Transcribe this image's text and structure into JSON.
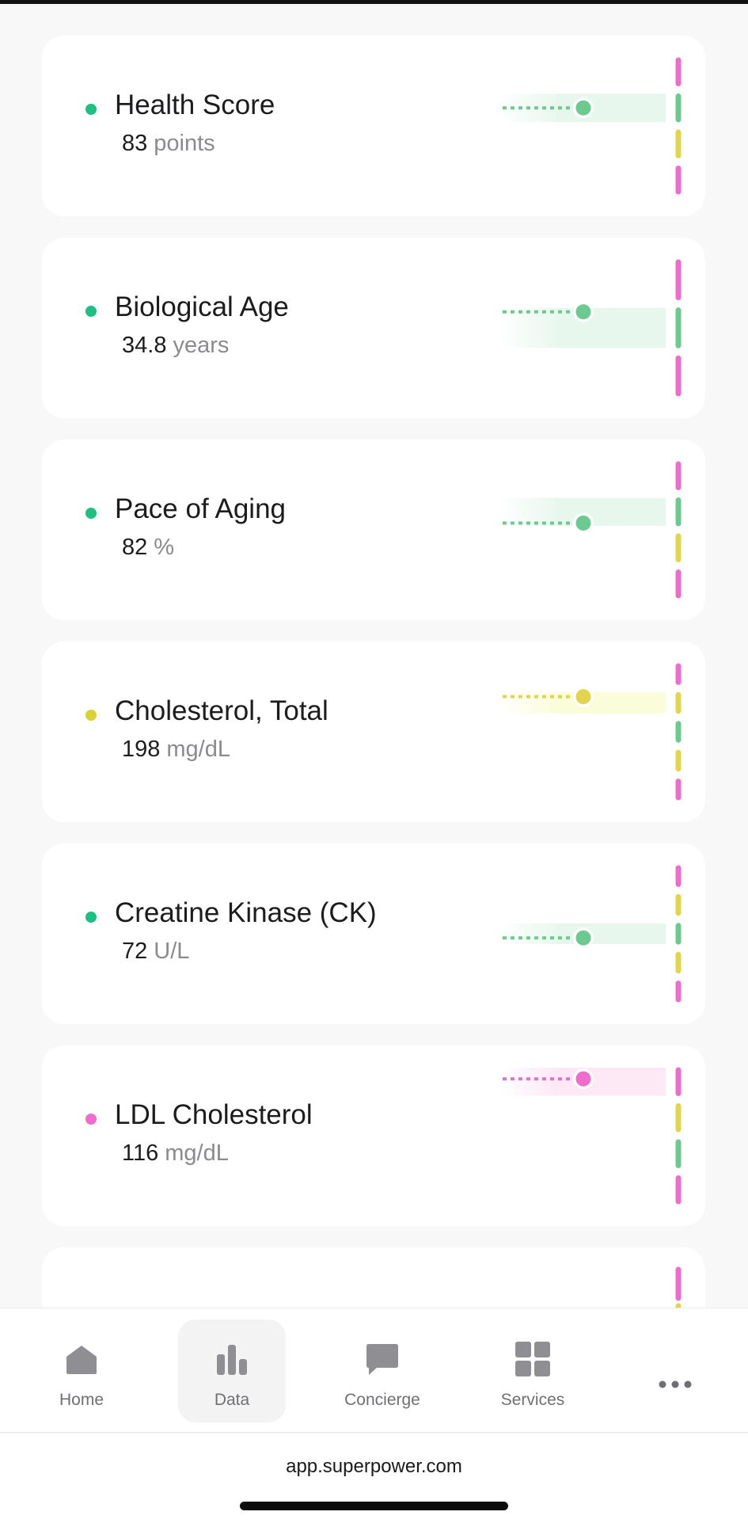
{
  "metrics": [
    {
      "title": "Health Score",
      "value": "83",
      "unit": "points",
      "status": "green",
      "segments": [
        "pink",
        "green",
        "yellow",
        "pink"
      ],
      "segment_index": 1,
      "fraction": 0.5
    },
    {
      "title": "Biological Age",
      "value": "34.8",
      "unit": "years",
      "status": "green",
      "segments": [
        "pink",
        "green",
        "pink"
      ],
      "segment_index": 1,
      "fraction": 0.1
    },
    {
      "title": "Pace of Aging",
      "value": "82",
      "unit": "%",
      "status": "green",
      "segments": [
        "pink",
        "green",
        "yellow",
        "pink"
      ],
      "segment_index": 1,
      "fraction": 0.9
    },
    {
      "title": "Cholesterol, Total",
      "value": "198",
      "unit": "mg/dL",
      "status": "yellow",
      "segments": [
        "pink",
        "yellow",
        "green",
        "yellow",
        "pink"
      ],
      "segment_index": 1,
      "fraction": 0.2
    },
    {
      "title": "Creatine Kinase (CK)",
      "value": "72",
      "unit": "U/L",
      "status": "green",
      "segments": [
        "pink",
        "yellow",
        "green",
        "yellow",
        "pink"
      ],
      "segment_index": 2,
      "fraction": 0.7
    },
    {
      "title": "LDL Cholesterol",
      "value": "116",
      "unit": "mg/dL",
      "status": "pink",
      "segments": [
        "pink",
        "yellow",
        "green",
        "pink"
      ],
      "segment_index": 0,
      "fraction": 0.4
    }
  ],
  "colors": {
    "green": "#6cc98f",
    "green_dot": "#1fbf84",
    "green_band": "#e8f7ee",
    "yellow": "#e2d44c",
    "yellow_dot": "#d8d233",
    "yellow_band": "#fbfcd9",
    "pink": "#f06ccc",
    "pink_dot": "#f06ccc",
    "pink_band": "#fde8f6"
  },
  "nav": {
    "items": [
      {
        "label": "Home",
        "icon": "home-icon"
      },
      {
        "label": "Data",
        "icon": "bar-chart-icon",
        "active": true
      },
      {
        "label": "Concierge",
        "icon": "chat-bubble-icon"
      },
      {
        "label": "Services",
        "icon": "grid-icon"
      },
      {
        "label": "",
        "icon": "more-icon"
      }
    ]
  },
  "browser": {
    "url": "app.superpower.com"
  }
}
